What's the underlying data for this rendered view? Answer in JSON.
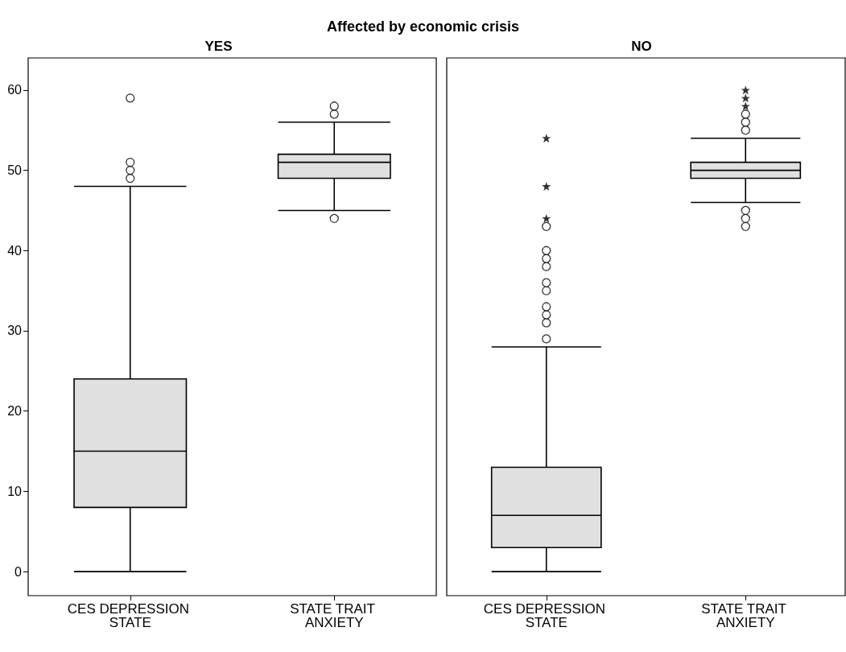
{
  "chart_data": [
    {
      "type": "box",
      "title": "YES",
      "annotations": [
        "Affected by economic crisis"
      ],
      "categories": [
        "CES DEPRESSION STATE",
        "STATE TRAIT ANXIETY"
      ],
      "ylim": [
        -3,
        64
      ],
      "yticks": [
        0,
        10,
        20,
        30,
        40,
        50,
        60
      ],
      "grid": false,
      "series": [
        {
          "type": "box",
          "color": "#e0e0e0",
          "boxes": [
            {
              "low": 0,
              "q1": 8,
              "median": 15,
              "q3": 24,
              "high": 48,
              "outliers": [
                49,
                50,
                51,
                59
              ]
            },
            {
              "low": 45,
              "q1": 49,
              "median": 51,
              "q3": 52,
              "high": 56,
              "outliers": [
                57,
                58,
                44
              ]
            }
          ]
        }
      ]
    },
    {
      "type": "box",
      "title": "NO",
      "categories": [
        "CES DEPRESSION STATE",
        "STATE TRAIT ANXIETY"
      ],
      "ylim": [
        -3,
        64
      ],
      "yticks": [
        0,
        10,
        20,
        30,
        40,
        50,
        60
      ],
      "tick_labels": "x",
      "grid": false,
      "series": [
        {
          "type": "box",
          "color": "#e0e0e0",
          "boxes": [
            {
              "low": 0,
              "q1": 3,
              "median": 7,
              "q3": 13,
              "high": 28,
              "outliers": [
                29,
                31,
                32,
                33,
                35,
                36,
                38,
                39,
                40,
                43
              ]
            },
            {
              "low": 46,
              "q1": 49,
              "median": 50,
              "q3": 51,
              "high": 54,
              "outliers": [
                55,
                56,
                57,
                45,
                44,
                43
              ]
            }
          ]
        },
        {
          "type": "scatter",
          "marker": "star",
          "color": "#000000",
          "x": [
            "CES DEPRESSION STATE",
            "CES DEPRESSION STATE",
            "CES DEPRESSION STATE",
            "STATE TRAIT ANXIETY",
            "STATE TRAIT ANXIETY",
            "STATE TRAIT ANXIETY"
          ],
          "values": [
            44,
            48,
            54,
            58,
            59,
            60
          ]
        }
      ]
    }
  ]
}
